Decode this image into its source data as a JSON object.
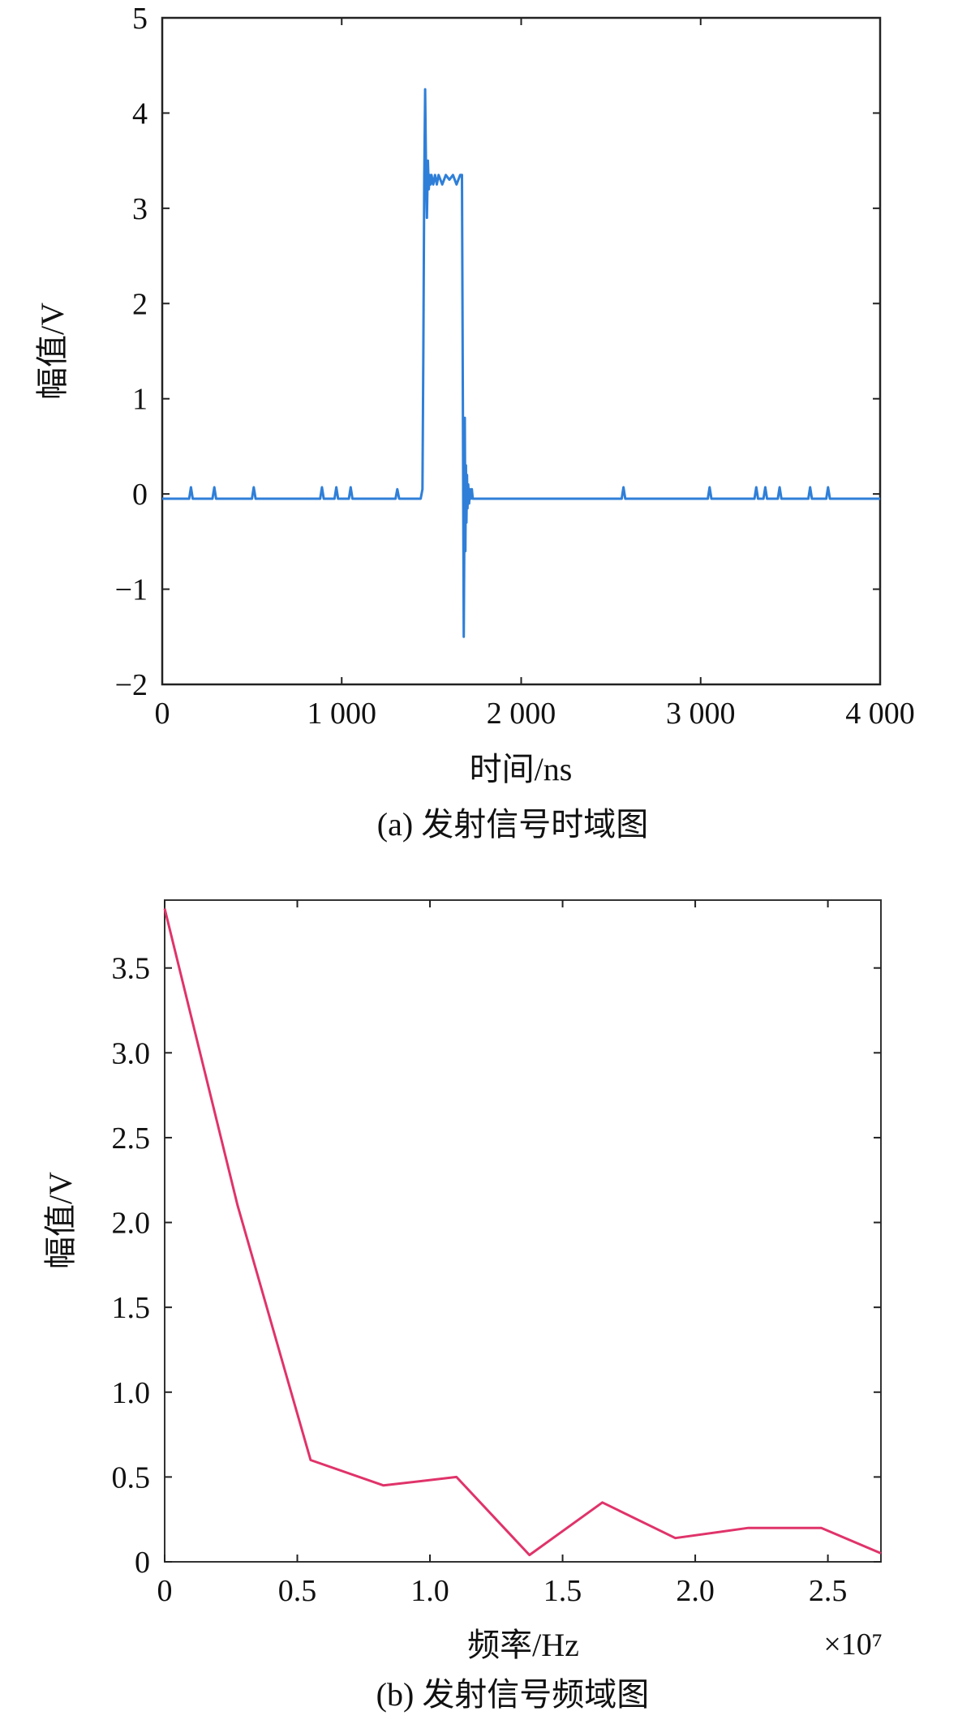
{
  "chart_data": [
    {
      "type": "line",
      "caption": "(a) 发射信号时域图",
      "xlabel": "时间/ns",
      "ylabel": "幅值/V",
      "xlim": [
        0,
        4000
      ],
      "ylim": [
        -2,
        5
      ],
      "xticks": [
        0,
        1000,
        2000,
        3000,
        4000
      ],
      "xtick_labels": [
        "0",
        "1 000",
        "2 000",
        "3 000",
        "4 000"
      ],
      "yticks": [
        -2,
        -1,
        0,
        1,
        2,
        3,
        4,
        5
      ],
      "ytick_labels": [
        "−2",
        "−1",
        "0",
        "1",
        "2",
        "3",
        "4",
        "5"
      ],
      "color": "#2f7fd8",
      "x": [
        0,
        150,
        160,
        170,
        280,
        290,
        300,
        500,
        510,
        520,
        880,
        890,
        900,
        960,
        970,
        980,
        1040,
        1050,
        1060,
        1300,
        1310,
        1320,
        1440,
        1450,
        1455,
        1460,
        1465,
        1470,
        1475,
        1480,
        1485,
        1490,
        1495,
        1500,
        1510,
        1520,
        1530,
        1540,
        1560,
        1580,
        1600,
        1620,
        1640,
        1660,
        1670,
        1675,
        1680,
        1683,
        1686,
        1689,
        1692,
        1695,
        1698,
        1701,
        1705,
        1710,
        1715,
        1720,
        1725,
        1730,
        1740,
        1760,
        1800,
        1850,
        1900,
        2000,
        2100,
        2200,
        2300,
        2500,
        2560,
        2570,
        2580,
        2700,
        2900,
        3000,
        3040,
        3050,
        3060,
        3200,
        3300,
        3310,
        3320,
        3350,
        3360,
        3370,
        3430,
        3440,
        3450,
        3600,
        3610,
        3620,
        3700,
        3710,
        3720,
        3800,
        3900,
        4000
      ],
      "y": [
        -0.05,
        -0.05,
        0.07,
        -0.05,
        -0.05,
        0.07,
        -0.05,
        -0.05,
        0.07,
        -0.05,
        -0.05,
        0.07,
        -0.05,
        -0.05,
        0.07,
        -0.05,
        -0.05,
        0.07,
        -0.05,
        -0.05,
        0.05,
        -0.05,
        -0.05,
        0.05,
        1.5,
        3.3,
        4.25,
        3.4,
        2.9,
        3.5,
        3.2,
        3.35,
        3.25,
        3.35,
        3.25,
        3.35,
        3.25,
        3.35,
        3.25,
        3.35,
        3.3,
        3.35,
        3.25,
        3.35,
        3.35,
        1.0,
        -1.5,
        -0.5,
        0.8,
        -0.6,
        0.3,
        -0.3,
        0.2,
        -0.15,
        0.1,
        -0.1,
        0.05,
        -0.05,
        0.05,
        -0.05,
        -0.05,
        -0.05,
        -0.05,
        -0.05,
        -0.05,
        -0.05,
        -0.05,
        -0.05,
        -0.05,
        -0.05,
        -0.05,
        0.07,
        -0.05,
        -0.05,
        -0.05,
        -0.05,
        -0.05,
        0.07,
        -0.05,
        -0.05,
        -0.05,
        0.07,
        -0.05,
        -0.05,
        0.07,
        -0.05,
        -0.05,
        0.07,
        -0.05,
        -0.05,
        0.07,
        -0.05,
        -0.05,
        0.07,
        -0.05,
        -0.05,
        -0.05,
        -0.05
      ]
    },
    {
      "type": "line",
      "caption": "(b) 发射信号频域图",
      "xlabel": "频率/Hz",
      "ylabel": "幅值/V",
      "x_multiplier": "×10⁷",
      "xlim": [
        0,
        2.7
      ],
      "ylim": [
        0,
        3.9
      ],
      "xticks": [
        0,
        0.5,
        1.0,
        1.5,
        2.0,
        2.5
      ],
      "xtick_labels": [
        "0",
        "0.5",
        "1.0",
        "1.5",
        "2.0",
        "2.5"
      ],
      "yticks": [
        0,
        0.5,
        1.0,
        1.5,
        2.0,
        2.5,
        3.0,
        3.5
      ],
      "ytick_labels": [
        "0",
        "0.5",
        "1.0",
        "1.5",
        "2.0",
        "2.5",
        "3.0",
        "3.5"
      ],
      "color": "#e0336a",
      "x": [
        0,
        0.275,
        0.55,
        0.825,
        1.1,
        1.375,
        1.65,
        1.925,
        2.2,
        2.475,
        2.7
      ],
      "y": [
        3.85,
        2.1,
        0.6,
        0.45,
        0.5,
        0.04,
        0.35,
        0.14,
        0.2,
        0.2,
        0.05
      ]
    }
  ]
}
